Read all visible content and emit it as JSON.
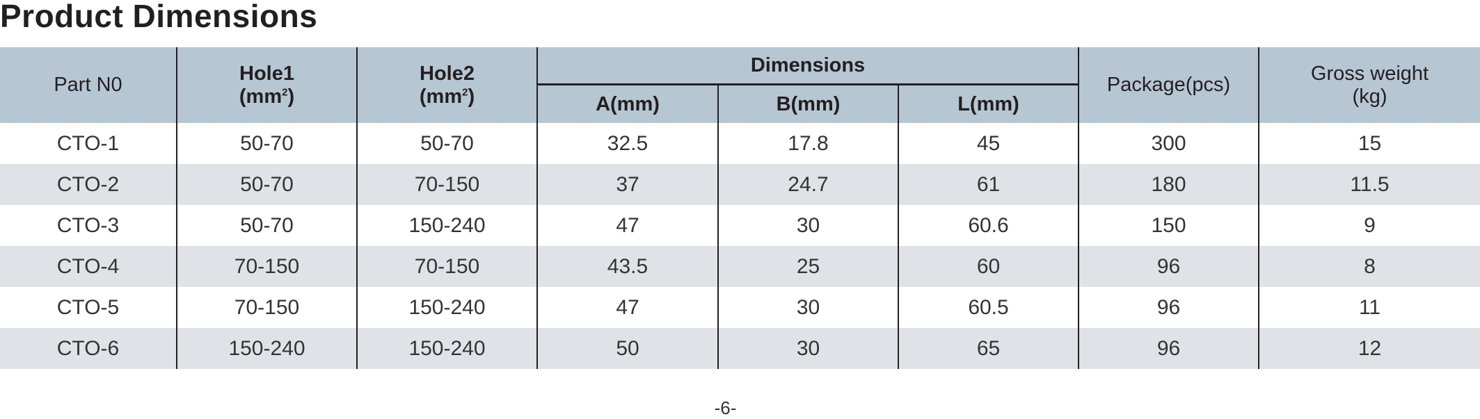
{
  "title": "Product Dimensions",
  "header": {
    "part_no": "Part N0",
    "hole1": "Hole1",
    "hole2": "Hole2",
    "unit_mm2_prefix": "(mm",
    "unit_mm2_sup": "2",
    "unit_mm2_suffix": ")",
    "dimensions": "Dimensions",
    "a": "A(mm)",
    "b": "B(mm)",
    "l": "L(mm)",
    "package": "Package(pcs)",
    "gross_weight": "Gross weight",
    "gross_weight_unit": "(kg)"
  },
  "rows": [
    {
      "part": "CTO-1",
      "hole1": "50-70",
      "hole2": "50-70",
      "a": "32.5",
      "b": "17.8",
      "l": "45",
      "package": "300",
      "weight": "15"
    },
    {
      "part": "CTO-2",
      "hole1": "50-70",
      "hole2": "70-150",
      "a": "37",
      "b": "24.7",
      "l": "61",
      "package": "180",
      "weight": "11.5"
    },
    {
      "part": "CTO-3",
      "hole1": "50-70",
      "hole2": "150-240",
      "a": "47",
      "b": "30",
      "l": "60.6",
      "package": "150",
      "weight": "9"
    },
    {
      "part": "CTO-4",
      "hole1": "70-150",
      "hole2": "70-150",
      "a": "43.5",
      "b": "25",
      "l": "60",
      "package": "96",
      "weight": "8"
    },
    {
      "part": "CTO-5",
      "hole1": "70-150",
      "hole2": "150-240",
      "a": "47",
      "b": "30",
      "l": "60.5",
      "package": "96",
      "weight": "11"
    },
    {
      "part": "CTO-6",
      "hole1": "150-240",
      "hole2": "150-240",
      "a": "50",
      "b": "30",
      "l": "65",
      "package": "96",
      "weight": "12"
    }
  ],
  "page_number": "-6-",
  "colors": {
    "header_bg": "#b6c6d3",
    "alt_row_bg": "#dfe3e7",
    "text": "#231f20"
  }
}
